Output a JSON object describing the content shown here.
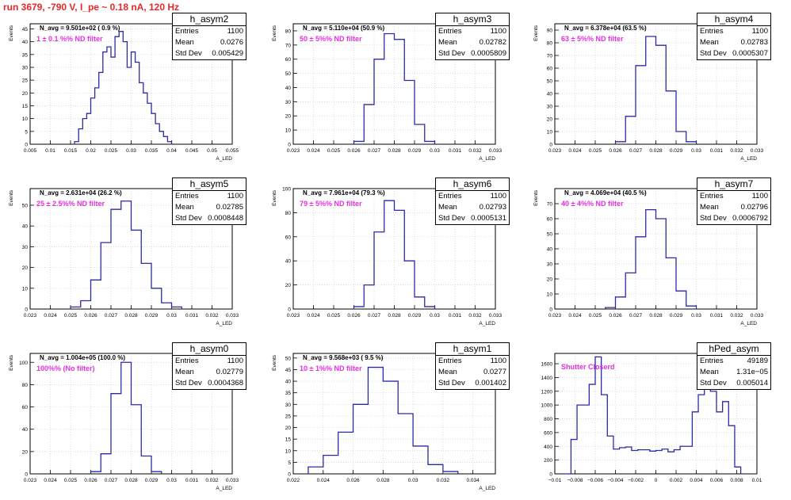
{
  "run_title": "run 3679,  -790 V, I_pe ~ 0.18 nA, 120 Hz",
  "colors": {
    "line": "#2b2ba8",
    "filter_text": "#e42fdc",
    "title_text": "#e8272a",
    "stats_border": "#000000"
  },
  "chart_data": [
    {
      "type": "histogram",
      "name": "h_asym2",
      "annotation": "N_avg = 9.501e+02 ( 0.9 %)",
      "filter_label": "1 ± 0.1 %% ND filter",
      "stats": {
        "entries_label": "Entries",
        "entries": "1100",
        "mean_label": "Mean",
        "mean": "0.0276",
        "std_label": "Std Dev",
        "std": "0.005429"
      },
      "ylabel": "Events",
      "xlabel": "A_LED",
      "xlim": [
        0.005,
        0.055
      ],
      "ylim": [
        0,
        47
      ],
      "xticks": [
        0.005,
        0.01,
        0.015,
        0.02,
        0.025,
        0.03,
        0.035,
        0.04,
        0.045,
        0.05,
        0.055
      ],
      "xtick_labels": [
        "0.005",
        "0.01",
        "0.015",
        "0.02",
        "0.025",
        "0.03",
        "0.035",
        "0.04",
        "0.045",
        "0.05",
        "0.055"
      ],
      "yticks": [
        0,
        5,
        10,
        15,
        20,
        25,
        30,
        35,
        40,
        45
      ],
      "ytick_labels": [
        "0",
        "5",
        "10",
        "15",
        "20",
        "25",
        "30",
        "35",
        "40",
        "45"
      ],
      "x": [
        0.0165,
        0.0175,
        0.0185,
        0.0195,
        0.0205,
        0.0215,
        0.0225,
        0.0235,
        0.0245,
        0.0255,
        0.0265,
        0.0275,
        0.0285,
        0.0295,
        0.0305,
        0.0315,
        0.0325,
        0.0335,
        0.0345,
        0.0355,
        0.0365,
        0.0375,
        0.0385,
        0.0395
      ],
      "values": [
        1,
        6,
        10,
        12,
        18,
        22,
        28,
        36,
        38,
        34,
        42,
        44,
        40,
        30,
        36,
        32,
        24,
        20,
        16,
        12,
        8,
        5,
        3,
        1
      ]
    },
    {
      "type": "histogram",
      "name": "h_asym3",
      "annotation": "N_avg = 5.110e+04 (50.9 %)",
      "filter_label": "50 ± 5%% ND filter",
      "stats": {
        "entries_label": "Entries",
        "entries": "1100",
        "mean_label": "Mean",
        "mean": "0.02782",
        "std_label": "Std Dev",
        "std": "0.0005809"
      },
      "ylabel": "Events",
      "xlabel": "A_LED",
      "xlim": [
        0.023,
        0.033
      ],
      "ylim": [
        0,
        85
      ],
      "xticks": [
        0.023,
        0.024,
        0.025,
        0.026,
        0.027,
        0.028,
        0.029,
        0.03,
        0.031,
        0.032,
        0.033
      ],
      "xtick_labels": [
        "0.023",
        "0.024",
        "0.025",
        "0.026",
        "0.027",
        "0.028",
        "0.029",
        "0.03",
        "0.031",
        "0.032",
        "0.033"
      ],
      "yticks": [
        0,
        10,
        20,
        30,
        40,
        50,
        60,
        70,
        80
      ],
      "ytick_labels": [
        "0",
        "10",
        "20",
        "30",
        "40",
        "50",
        "60",
        "70",
        "80"
      ],
      "x": [
        0.02625,
        0.02675,
        0.02725,
        0.02775,
        0.02825,
        0.02875,
        0.02925,
        0.02975
      ],
      "values": [
        2,
        28,
        60,
        78,
        74,
        45,
        14,
        2
      ]
    },
    {
      "type": "histogram",
      "name": "h_asym4",
      "annotation": "N_avg = 6.378e+04 (63.5 %)",
      "filter_label": "63 ± 5%% ND filter",
      "stats": {
        "entries_label": "Entries",
        "entries": "1100",
        "mean_label": "Mean",
        "mean": "0.02783",
        "std_label": "Std Dev",
        "std": "0.0005307"
      },
      "ylabel": "Events",
      "xlabel": "A_LED",
      "xlim": [
        0.023,
        0.033
      ],
      "ylim": [
        0,
        95
      ],
      "xticks": [
        0.023,
        0.024,
        0.025,
        0.026,
        0.027,
        0.028,
        0.029,
        0.03,
        0.031,
        0.032,
        0.033
      ],
      "xtick_labels": [
        "0.023",
        "0.024",
        "0.025",
        "0.026",
        "0.027",
        "0.028",
        "0.029",
        "0.03",
        "0.031",
        "0.032",
        "0.033"
      ],
      "yticks": [
        0,
        10,
        20,
        30,
        40,
        50,
        60,
        70,
        80,
        90
      ],
      "ytick_labels": [
        "0",
        "10",
        "20",
        "30",
        "40",
        "50",
        "60",
        "70",
        "80",
        "90"
      ],
      "x": [
        0.02625,
        0.02675,
        0.02725,
        0.02775,
        0.02825,
        0.02875,
        0.02925,
        0.02975
      ],
      "values": [
        2,
        22,
        62,
        85,
        78,
        42,
        10,
        2
      ]
    },
    {
      "type": "histogram",
      "name": "h_asym5",
      "annotation": "N_avg = 2.631e+04 (26.2 %)",
      "filter_label": "25 ± 2.5%% ND filter",
      "stats": {
        "entries_label": "Entries",
        "entries": "1100",
        "mean_label": "Mean",
        "mean": "0.02785",
        "std_label": "Std Dev",
        "std": "0.0008448"
      },
      "ylabel": "Events",
      "xlabel": "A_LED",
      "xlim": [
        0.023,
        0.033
      ],
      "ylim": [
        0,
        58
      ],
      "xticks": [
        0.023,
        0.024,
        0.025,
        0.026,
        0.027,
        0.028,
        0.029,
        0.03,
        0.031,
        0.032,
        0.033
      ],
      "xtick_labels": [
        "0.023",
        "0.024",
        "0.025",
        "0.026",
        "0.027",
        "0.028",
        "0.029",
        "0.03",
        "0.031",
        "0.032",
        "0.033"
      ],
      "yticks": [
        0,
        10,
        20,
        30,
        40,
        50
      ],
      "ytick_labels": [
        "0",
        "10",
        "20",
        "30",
        "40",
        "50"
      ],
      "x": [
        0.02525,
        0.02575,
        0.02625,
        0.02675,
        0.02725,
        0.02775,
        0.02825,
        0.02875,
        0.02925,
        0.02975,
        0.03025
      ],
      "values": [
        1,
        4,
        14,
        32,
        48,
        52,
        38,
        22,
        10,
        3,
        1
      ]
    },
    {
      "type": "histogram",
      "name": "h_asym6",
      "annotation": "N_avg = 7.961e+04 (79.3 %)",
      "filter_label": "79 ± 5%% ND filter",
      "stats": {
        "entries_label": "Entries",
        "entries": "1100",
        "mean_label": "Mean",
        "mean": "0.02793",
        "std_label": "Std Dev",
        "std": "0.0005131"
      },
      "ylabel": "Events",
      "xlabel": "A_LED",
      "xlim": [
        0.023,
        0.033
      ],
      "ylim": [
        0,
        100
      ],
      "xticks": [
        0.023,
        0.024,
        0.025,
        0.026,
        0.027,
        0.028,
        0.029,
        0.03,
        0.031,
        0.032,
        0.033
      ],
      "xtick_labels": [
        "0.023",
        "0.024",
        "0.025",
        "0.026",
        "0.027",
        "0.028",
        "0.029",
        "0.03",
        "0.031",
        "0.032",
        "0.033"
      ],
      "yticks": [
        0,
        20,
        40,
        60,
        80,
        100
      ],
      "ytick_labels": [
        "0",
        "20",
        "40",
        "60",
        "80",
        "100"
      ],
      "x": [
        0.02625,
        0.02675,
        0.02725,
        0.02775,
        0.02825,
        0.02875,
        0.02925,
        0.02975
      ],
      "values": [
        2,
        20,
        64,
        90,
        82,
        40,
        10,
        2
      ]
    },
    {
      "type": "histogram",
      "name": "h_asym7",
      "annotation": "N_avg = 4.069e+04 (40.5 %)",
      "filter_label": "40 ± 4%% ND filter",
      "stats": {
        "entries_label": "Entries",
        "entries": "1100",
        "mean_label": "Mean",
        "mean": "0.02796",
        "std_label": "Std Dev",
        "std": "0.0006792"
      },
      "ylabel": "Events",
      "xlabel": "A_LED",
      "xlim": [
        0.023,
        0.033
      ],
      "ylim": [
        0,
        80
      ],
      "xticks": [
        0.023,
        0.024,
        0.025,
        0.026,
        0.027,
        0.028,
        0.029,
        0.03,
        0.031,
        0.032,
        0.033
      ],
      "xtick_labels": [
        "0.023",
        "0.024",
        "0.025",
        "0.026",
        "0.027",
        "0.028",
        "0.029",
        "0.03",
        "0.031",
        "0.032",
        "0.033"
      ],
      "yticks": [
        0,
        10,
        20,
        30,
        40,
        50,
        60,
        70
      ],
      "ytick_labels": [
        "0",
        "10",
        "20",
        "30",
        "40",
        "50",
        "60",
        "70"
      ],
      "x": [
        0.02575,
        0.02625,
        0.02675,
        0.02725,
        0.02775,
        0.02825,
        0.02875,
        0.02925,
        0.02975
      ],
      "values": [
        1,
        8,
        24,
        48,
        66,
        60,
        34,
        12,
        2
      ]
    },
    {
      "type": "histogram",
      "name": "h_asym0",
      "annotation": "N_avg = 1.004e+05 (100.0 %)",
      "filter_label": "100%% (No filter)",
      "stats": {
        "entries_label": "Entries",
        "entries": "1100",
        "mean_label": "Mean",
        "mean": "0.02779",
        "std_label": "Std Dev",
        "std": "0.0004368"
      },
      "ylabel": "Events",
      "xlabel": "A_LED",
      "xlim": [
        0.023,
        0.033
      ],
      "ylim": [
        0,
        108
      ],
      "xticks": [
        0.023,
        0.024,
        0.025,
        0.026,
        0.027,
        0.028,
        0.029,
        0.03,
        0.031,
        0.032,
        0.033
      ],
      "xtick_labels": [
        "0.023",
        "0.024",
        "0.025",
        "0.026",
        "0.027",
        "0.028",
        "0.029",
        "0.03",
        "0.031",
        "0.032",
        "0.033"
      ],
      "yticks": [
        0,
        20,
        40,
        60,
        80,
        100
      ],
      "ytick_labels": [
        "0",
        "20",
        "40",
        "60",
        "80",
        "100"
      ],
      "x": [
        0.02625,
        0.02675,
        0.02725,
        0.02775,
        0.02825,
        0.02875,
        0.02925
      ],
      "values": [
        2,
        18,
        72,
        100,
        62,
        16,
        2
      ]
    },
    {
      "type": "histogram",
      "name": "h_asym1",
      "annotation": "N_avg = 9.568e+03 ( 9.5 %)",
      "filter_label": "10 ± 1%% ND filter",
      "stats": {
        "entries_label": "Entries",
        "entries": "1100",
        "mean_label": "Mean",
        "mean": "0.0277",
        "std_label": "Std Dev",
        "std": "0.001402"
      },
      "ylabel": "Events",
      "xlabel": "A_LED",
      "xlim": [
        0.022,
        0.0355
      ],
      "ylim": [
        0,
        52
      ],
      "xticks": [
        0.022,
        0.024,
        0.026,
        0.028,
        0.03,
        0.032,
        0.034
      ],
      "xtick_labels": [
        "0.022",
        "0.024",
        "0.026",
        "0.028",
        "0.03",
        "0.032",
        "0.034"
      ],
      "yticks": [
        0,
        5,
        10,
        15,
        20,
        25,
        30,
        35,
        40,
        45,
        50
      ],
      "ytick_labels": [
        "0",
        "5",
        "10",
        "15",
        "20",
        "25",
        "30",
        "35",
        "40",
        "45",
        "50"
      ],
      "x": [
        0.0235,
        0.0245,
        0.0255,
        0.0265,
        0.0275,
        0.0285,
        0.0295,
        0.0305,
        0.0315,
        0.0325
      ],
      "values": [
        3,
        8,
        18,
        30,
        46,
        40,
        26,
        12,
        4,
        1
      ]
    },
    {
      "type": "histogram",
      "name": "hPed_asym",
      "annotation": "",
      "filter_label": "Shutter Closerd",
      "stats": {
        "entries_label": "Entries",
        "entries": "49189",
        "mean_label": "Mean",
        "mean": "1.31e−05",
        "std_label": "Std Dev",
        "std": "0.005014"
      },
      "ylabel": "",
      "xlabel": "",
      "xlim": [
        -0.01,
        0.01
      ],
      "ylim": [
        0,
        1750
      ],
      "xticks": [
        -0.01,
        -0.008,
        -0.006,
        -0.004,
        -0.002,
        0,
        0.002,
        0.004,
        0.006,
        0.008,
        0.01
      ],
      "xtick_labels": [
        "−0.01",
        "−0.008",
        "−0.006",
        "−0.004",
        "−0.002",
        "0",
        "0.002",
        "0.004",
        "0.006",
        "0.008",
        "0.01"
      ],
      "yticks": [
        0,
        200,
        400,
        600,
        800,
        1000,
        1200,
        1400,
        1600
      ],
      "ytick_labels": [
        "0",
        "200",
        "400",
        "600",
        "800",
        "1000",
        "1200",
        "1400",
        "1600"
      ],
      "x": [
        -0.0087,
        -0.0081,
        -0.0075,
        -0.0069,
        -0.0063,
        -0.0057,
        -0.0051,
        -0.0045,
        -0.0039,
        -0.0033,
        -0.0027,
        -0.0021,
        -0.0015,
        -0.0009,
        -0.0003,
        0.0003,
        0.0009,
        0.0015,
        0.0021,
        0.0027,
        0.0033,
        0.0039,
        0.0045,
        0.0051,
        0.0057,
        0.0063,
        0.0069,
        0.0075,
        0.0081
      ],
      "values": [
        0,
        500,
        1000,
        1000,
        1300,
        1700,
        1150,
        550,
        360,
        380,
        390,
        340,
        350,
        350,
        330,
        340,
        360,
        320,
        350,
        400,
        400,
        900,
        1150,
        1400,
        1200,
        900,
        1050,
        700,
        100
      ]
    }
  ]
}
